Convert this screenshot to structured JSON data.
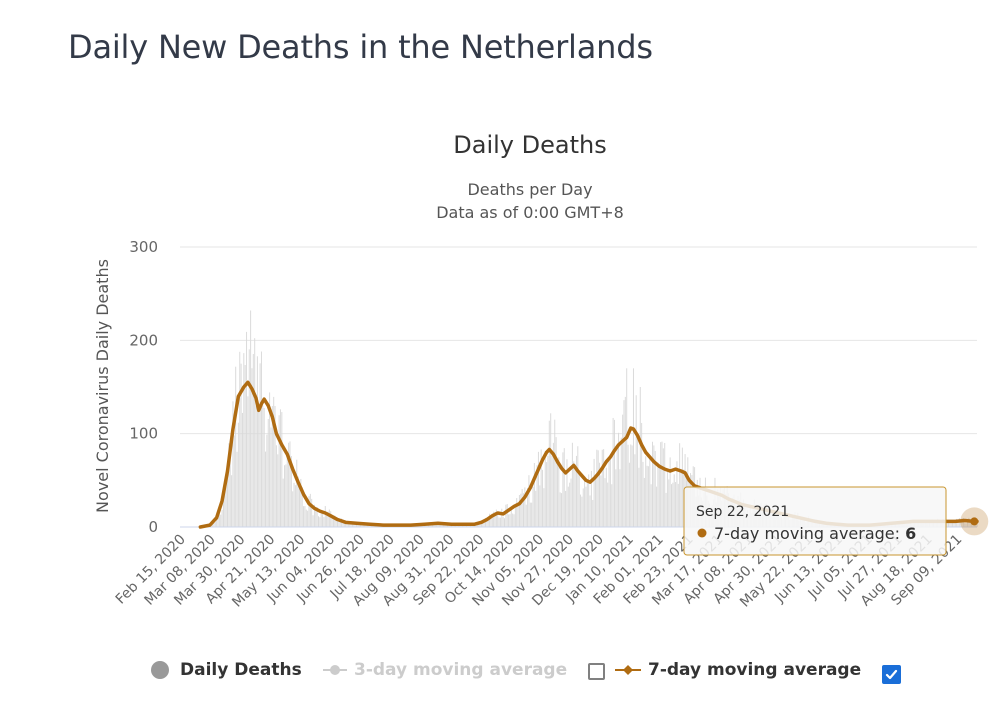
{
  "page": {
    "heading": "Daily New Deaths in the Netherlands"
  },
  "colors": {
    "bars": "#d9d9d9",
    "ma7": "#b06c12",
    "ma3": "#c8c8c8",
    "grid": "#e6e6e6",
    "tooltip_border": "#c9962f",
    "checkbox_on": "#1a6ed8"
  },
  "chart_data": {
    "type": "bar",
    "title": "Daily Deaths",
    "subtitle_lines": [
      "Deaths per Day",
      "Data as of 0:00 GMT+8"
    ],
    "ylabel": "Novel Coronavirus Daily Deaths",
    "ylim": [
      0,
      300
    ],
    "yticks": [
      "0",
      "100",
      "200",
      "300"
    ],
    "x_start": "2020-02-15",
    "x_end": "2021-09-24",
    "x_ticks": [
      "Feb 15, 2020",
      "Mar 08, 2020",
      "Mar 30, 2020",
      "Apr 21, 2020",
      "May 13, 2020",
      "Jun 04, 2020",
      "Jun 26, 2020",
      "Jul 18, 2020",
      "Aug 09, 2020",
      "Aug 31, 2020",
      "Sep 22, 2020",
      "Oct 14, 2020",
      "Nov 05, 2020",
      "Nov 27, 2020",
      "Dec 19, 2020",
      "Jan 10, 2021",
      "Feb 01, 2021",
      "Feb 23, 2021",
      "Mar 17, 2021",
      "Apr 08, 2021",
      "Apr 30, 2021",
      "May 22, 2021",
      "Jun 13, 2021",
      "Jul 05, 2021",
      "Jul 27, 2021",
      "Aug 18, 2021",
      "Sep 09, 2021"
    ],
    "series": [
      {
        "name": "Daily Deaths",
        "visible": true,
        "note": "daily bars peak around 232 in early Apr 2020 and around 170 in mid-Jan 2021"
      },
      {
        "name": "3-day moving average",
        "visible": false
      },
      {
        "name": "7-day moving average",
        "visible": true,
        "points": [
          [
            "2020-03-01",
            0
          ],
          [
            "2020-03-08",
            2
          ],
          [
            "2020-03-13",
            10
          ],
          [
            "2020-03-17",
            28
          ],
          [
            "2020-03-21",
            60
          ],
          [
            "2020-03-25",
            105
          ],
          [
            "2020-03-29",
            140
          ],
          [
            "2020-04-02",
            150
          ],
          [
            "2020-04-05",
            155
          ],
          [
            "2020-04-08",
            148
          ],
          [
            "2020-04-11",
            138
          ],
          [
            "2020-04-13",
            125
          ],
          [
            "2020-04-15",
            132
          ],
          [
            "2020-04-17",
            137
          ],
          [
            "2020-04-20",
            130
          ],
          [
            "2020-04-23",
            118
          ],
          [
            "2020-04-26",
            100
          ],
          [
            "2020-04-30",
            88
          ],
          [
            "2020-05-04",
            78
          ],
          [
            "2020-05-08",
            62
          ],
          [
            "2020-05-12",
            48
          ],
          [
            "2020-05-16",
            35
          ],
          [
            "2020-05-20",
            25
          ],
          [
            "2020-05-24",
            20
          ],
          [
            "2020-05-28",
            17
          ],
          [
            "2020-06-01",
            15
          ],
          [
            "2020-06-05",
            12
          ],
          [
            "2020-06-10",
            8
          ],
          [
            "2020-06-16",
            5
          ],
          [
            "2020-06-24",
            4
          ],
          [
            "2020-07-04",
            3
          ],
          [
            "2020-07-14",
            2
          ],
          [
            "2020-07-24",
            2
          ],
          [
            "2020-08-03",
            2
          ],
          [
            "2020-08-13",
            3
          ],
          [
            "2020-08-23",
            4
          ],
          [
            "2020-09-02",
            3
          ],
          [
            "2020-09-12",
            3
          ],
          [
            "2020-09-19",
            3
          ],
          [
            "2020-09-24",
            5
          ],
          [
            "2020-09-28",
            8
          ],
          [
            "2020-10-02",
            12
          ],
          [
            "2020-10-06",
            15
          ],
          [
            "2020-10-10",
            14
          ],
          [
            "2020-10-14",
            18
          ],
          [
            "2020-10-18",
            22
          ],
          [
            "2020-10-22",
            25
          ],
          [
            "2020-10-26",
            32
          ],
          [
            "2020-10-30",
            42
          ],
          [
            "2020-11-02",
            52
          ],
          [
            "2020-11-05",
            62
          ],
          [
            "2020-11-08",
            72
          ],
          [
            "2020-11-11",
            80
          ],
          [
            "2020-11-13",
            83
          ],
          [
            "2020-11-16",
            78
          ],
          [
            "2020-11-19",
            70
          ],
          [
            "2020-11-22",
            63
          ],
          [
            "2020-11-25",
            58
          ],
          [
            "2020-11-28",
            62
          ],
          [
            "2020-12-01",
            66
          ],
          [
            "2020-12-04",
            60
          ],
          [
            "2020-12-07",
            55
          ],
          [
            "2020-12-10",
            50
          ],
          [
            "2020-12-13",
            48
          ],
          [
            "2020-12-16",
            52
          ],
          [
            "2020-12-19",
            57
          ],
          [
            "2020-12-22",
            63
          ],
          [
            "2020-12-25",
            70
          ],
          [
            "2020-12-28",
            75
          ],
          [
            "2020-12-31",
            82
          ],
          [
            "2021-01-03",
            88
          ],
          [
            "2021-01-06",
            92
          ],
          [
            "2021-01-09",
            96
          ],
          [
            "2021-01-12",
            106
          ],
          [
            "2021-01-14",
            105
          ],
          [
            "2021-01-17",
            98
          ],
          [
            "2021-01-20",
            88
          ],
          [
            "2021-01-23",
            80
          ],
          [
            "2021-01-26",
            75
          ],
          [
            "2021-01-29",
            70
          ],
          [
            "2021-02-02",
            65
          ],
          [
            "2021-02-06",
            62
          ],
          [
            "2021-02-10",
            60
          ],
          [
            "2021-02-14",
            62
          ],
          [
            "2021-02-18",
            60
          ],
          [
            "2021-02-21",
            58
          ],
          [
            "2021-02-24",
            50
          ],
          [
            "2021-02-28",
            44
          ],
          [
            "2021-03-04",
            42
          ],
          [
            "2021-03-08",
            40
          ],
          [
            "2021-03-12",
            38
          ],
          [
            "2021-03-16",
            36
          ],
          [
            "2021-03-20",
            34
          ],
          [
            "2021-03-25",
            30
          ],
          [
            "2021-03-30",
            27
          ],
          [
            "2021-04-04",
            24
          ],
          [
            "2021-04-10",
            22
          ],
          [
            "2021-04-16",
            20
          ],
          [
            "2021-04-22",
            18
          ],
          [
            "2021-04-28",
            16
          ],
          [
            "2021-05-04",
            14
          ],
          [
            "2021-05-10",
            12
          ],
          [
            "2021-05-16",
            10
          ],
          [
            "2021-05-22",
            8
          ],
          [
            "2021-05-28",
            6
          ],
          [
            "2021-06-05",
            4
          ],
          [
            "2021-06-13",
            3
          ],
          [
            "2021-06-21",
            2
          ],
          [
            "2021-06-29",
            2
          ],
          [
            "2021-07-07",
            2
          ],
          [
            "2021-07-15",
            3
          ],
          [
            "2021-07-23",
            4
          ],
          [
            "2021-07-31",
            5
          ],
          [
            "2021-08-08",
            6
          ],
          [
            "2021-08-16",
            6
          ],
          [
            "2021-08-24",
            6
          ],
          [
            "2021-09-01",
            6
          ],
          [
            "2021-09-08",
            6
          ],
          [
            "2021-09-15",
            7
          ],
          [
            "2021-09-22",
            6
          ],
          [
            "2021-09-24",
            6
          ]
        ]
      }
    ],
    "tooltip": {
      "date": "Sep 22, 2021",
      "series": "7-day moving average",
      "value": 6
    },
    "grid": true,
    "legend_position": "bottom"
  },
  "legend": {
    "items": [
      {
        "label": "Daily Deaths",
        "visible": true,
        "checkbox": false
      },
      {
        "label": "3-day moving average",
        "visible": false,
        "checked": false
      },
      {
        "label": "7-day moving average",
        "visible": true,
        "checked": true
      }
    ]
  }
}
